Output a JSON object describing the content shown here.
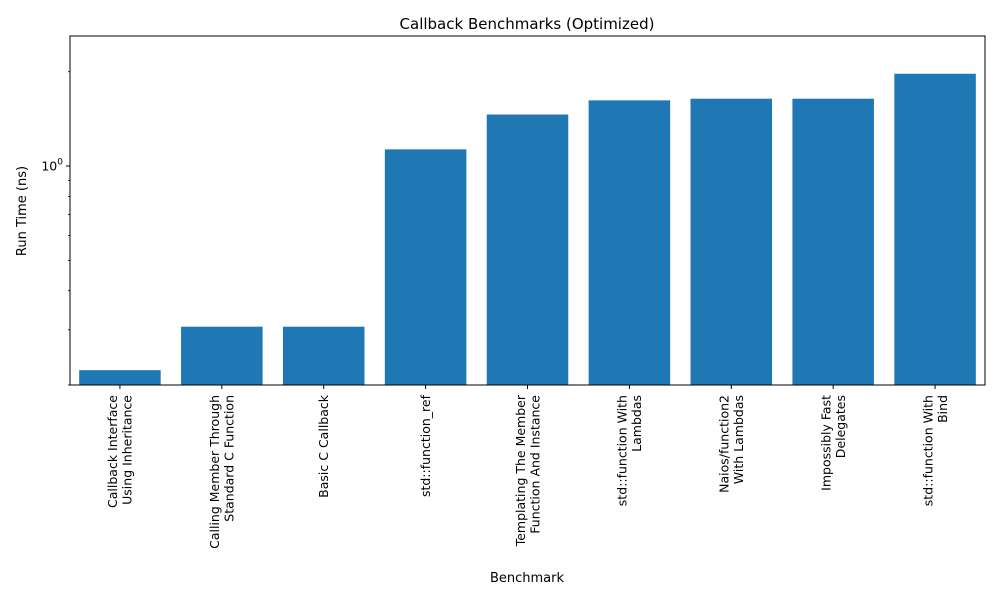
{
  "chart_data": {
    "type": "bar",
    "title": "Callback Benchmarks (Optimized)",
    "xlabel": "Benchmark",
    "ylabel": "Run Time (ns)",
    "yscale": "log",
    "ylim": [
      0.2,
      2.6
    ],
    "ytick_labels": [
      {
        "value": 1,
        "base": "10",
        "exp": "0"
      }
    ],
    "grid": false,
    "bar_color": "#1f77b4",
    "categories": [
      [
        "Callback Interface",
        "Using Inheritance"
      ],
      [
        "Calling Member Through",
        "Standard C Function"
      ],
      [
        "Basic C Callback"
      ],
      [
        "std::function_ref"
      ],
      [
        "Templating The Member",
        "Function And Instance"
      ],
      [
        "std::function With",
        "Lambdas"
      ],
      [
        "Naios/function2",
        "With Lambdas"
      ],
      [
        "Impossibly Fast",
        "Delegates"
      ],
      [
        "std::function With",
        "Bind"
      ]
    ],
    "values": [
      0.223,
      0.307,
      0.307,
      1.13,
      1.46,
      1.62,
      1.64,
      1.64,
      1.97
    ]
  }
}
